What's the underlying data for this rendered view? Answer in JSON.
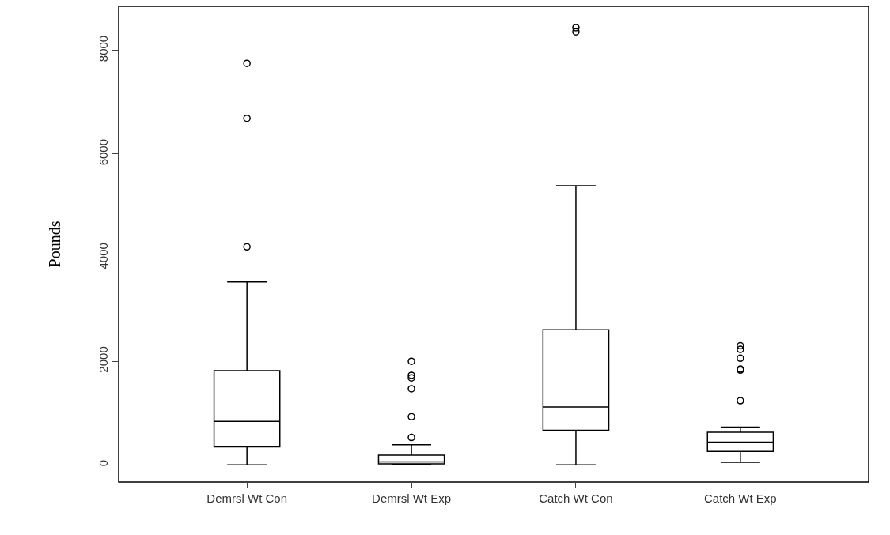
{
  "chart_data": {
    "type": "box",
    "ylabel": "Pounds",
    "categories": [
      "Demrsl Wt Con",
      "Demrsl Wt Exp",
      "Catch Wt Con",
      "Catch Wt Exp"
    ],
    "boxes": [
      {
        "low": 0,
        "q1": 350,
        "median": 840,
        "q3": 1820,
        "high": 3530,
        "outliers": [
          4210,
          6690,
          7750
        ]
      },
      {
        "low": 0,
        "q1": 20,
        "median": 60,
        "q3": 190,
        "high": 390,
        "outliers": [
          530,
          930,
          1470,
          1680,
          1730,
          2000
        ]
      },
      {
        "low": 0,
        "q1": 670,
        "median": 1120,
        "q3": 2610,
        "high": 5390,
        "outliers": [
          8360,
          8440
        ]
      },
      {
        "low": 50,
        "q1": 260,
        "median": 440,
        "q3": 630,
        "high": 730,
        "outliers": [
          1240,
          1830,
          1850,
          2060,
          2230,
          2300
        ]
      }
    ],
    "ylim": [
      -330,
      8850
    ],
    "yticks": [
      0,
      2000,
      4000,
      6000,
      8000
    ],
    "marker": "circle"
  }
}
